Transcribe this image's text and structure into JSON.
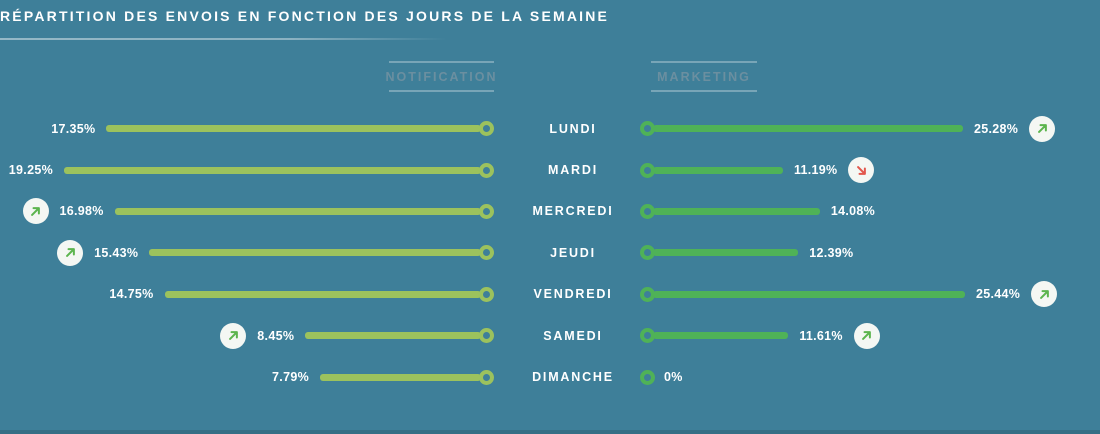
{
  "title": "RÉPARTITION DES ENVOIS EN FONCTION DES JOURS DE LA SEMAINE",
  "colors": {
    "background": "#3e7f99",
    "notification_bar": "#9cc25d",
    "marketing_bar": "#4fb257",
    "trend_up": "#5cb54e",
    "trend_down": "#e2574c",
    "badge_background": "#f4f7f3",
    "header_text": "#6b8fa0",
    "title_text": "#ffffff"
  },
  "chart_data": {
    "type": "bar",
    "title": "RÉPARTITION DES ENVOIS EN FONCTION DES JOURS DE LA SEMAINE",
    "orientation": "horizontal-mirrored",
    "categories": [
      "LUNDI",
      "MARDI",
      "MERCREDI",
      "JEUDI",
      "VENDREDI",
      "SAMEDI",
      "DIMANCHE"
    ],
    "series": [
      {
        "name": "NOTIFICATION",
        "direction": "right-to-left",
        "values": [
          17.35,
          19.25,
          16.98,
          15.43,
          14.75,
          8.45,
          7.79
        ],
        "labels": [
          "17.35%",
          "19.25%",
          "16.98%",
          "15.43%",
          "14.75%",
          "8.45%",
          "7.79%"
        ],
        "trends": [
          "none",
          "none",
          "up",
          "up",
          "none",
          "up",
          "none"
        ],
        "color": "#9cc25d"
      },
      {
        "name": "MARKETING",
        "direction": "left-to-right",
        "values": [
          25.28,
          11.19,
          14.08,
          12.39,
          25.44,
          11.61,
          0
        ],
        "labels": [
          "25.28%",
          "11.19%",
          "14.08%",
          "12.39%",
          "25.44%",
          "11.61%",
          "0%"
        ],
        "trends": [
          "up",
          "down",
          "none",
          "none",
          "up",
          "up",
          "none"
        ],
        "color": "#4fb257"
      }
    ],
    "layout_hints": {
      "bars_normalized_per_series_max": true,
      "grid": false,
      "legend_position": "column-headers-top"
    }
  }
}
